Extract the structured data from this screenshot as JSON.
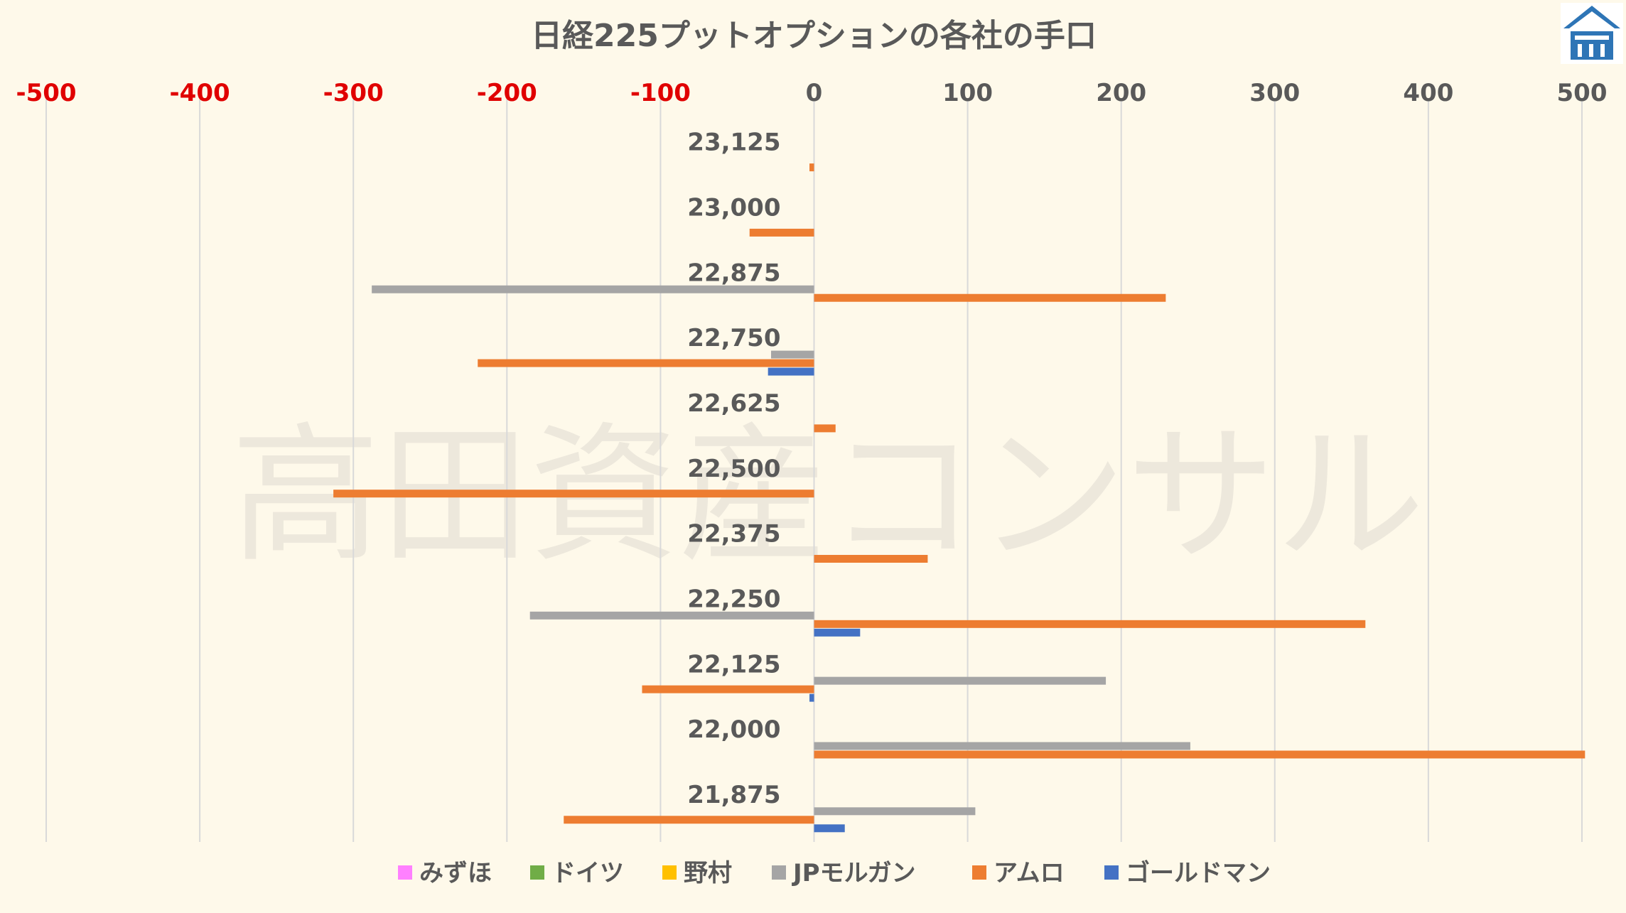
{
  "watermark": "高田資産コンサル",
  "logo": {
    "icon": "building-logo-icon",
    "color": "#2e75b6"
  },
  "chart_data": {
    "type": "bar",
    "orientation": "horizontal",
    "title": "日経225プットオプションの各社の手口",
    "xlim": [
      -500,
      500
    ],
    "xticks": [
      -500,
      -400,
      -300,
      -200,
      -100,
      0,
      100,
      200,
      300,
      400,
      500
    ],
    "xtick_labels": [
      "-500",
      "-400",
      "-300",
      "-200",
      "-100",
      "0",
      "100",
      "200",
      "300",
      "400",
      "500"
    ],
    "negative_tick_color": "#e00000",
    "axis_position": "top",
    "grid": true,
    "legend_position": "bottom",
    "categories": [
      "23,125",
      "23,000",
      "22,875",
      "22,750",
      "22,625",
      "22,500",
      "22,375",
      "22,250",
      "22,125",
      "22,000",
      "21,875"
    ],
    "series": [
      {
        "name": "みずほ",
        "color": "#ff80ff",
        "values": [
          0,
          0,
          0,
          0,
          0,
          0,
          0,
          0,
          0,
          0,
          0
        ]
      },
      {
        "name": "ドイツ",
        "color": "#70ad47",
        "values": [
          0,
          0,
          0,
          0,
          0,
          0,
          0,
          0,
          0,
          0,
          0
        ]
      },
      {
        "name": "野村",
        "color": "#ffc000",
        "values": [
          0,
          0,
          0,
          0,
          0,
          0,
          0,
          0,
          0,
          0,
          0
        ]
      },
      {
        "name": "JPモルガン",
        "color": "#a5a5a5",
        "values": [
          0,
          0,
          -288,
          -28,
          0,
          0,
          0,
          -185,
          190,
          245,
          105
        ]
      },
      {
        "name": "アムロ",
        "color": "#ed7d31",
        "values": [
          -3,
          -42,
          229,
          -219,
          14,
          -313,
          74,
          359,
          -112,
          502,
          -163
        ]
      },
      {
        "name": "ゴールドマン",
        "color": "#4472c4",
        "values": [
          0,
          0,
          0,
          -30,
          0,
          0,
          0,
          30,
          -3,
          0,
          20
        ]
      }
    ]
  }
}
